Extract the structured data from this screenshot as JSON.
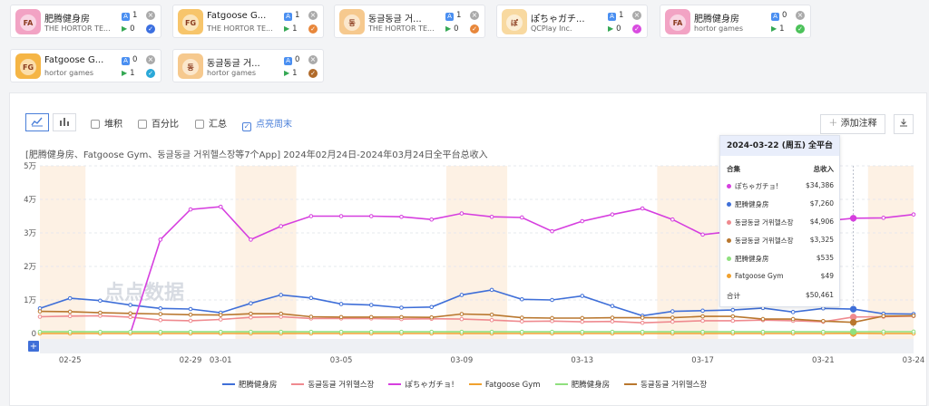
{
  "apps": [
    {
      "name": "肥腾健身房",
      "publisher": "THE HORTOR TE...",
      "ios": "1",
      "android": "0",
      "status_color": "#3b6fe0",
      "status": "check",
      "icon_bg": "#f2a3c4",
      "icon_label": "FA"
    },
    {
      "name": "Fatgoose G...",
      "publisher": "THE HORTOR TE...",
      "ios": "1",
      "android": "1",
      "status_color": "#e8873b",
      "status": "check",
      "icon_bg": "#f7c56b",
      "icon_label": "FG"
    },
    {
      "name": "동글동글 거...",
      "publisher": "THE HORTOR TE...",
      "ios": "1",
      "android": "0",
      "status_color": "#e8873b",
      "status": "check",
      "icon_bg": "#f6c98e",
      "icon_label": "동"
    },
    {
      "name": "ぽちゃガチ...",
      "publisher": "QCPlay Inc.",
      "ios": "1",
      "android": "0",
      "status_color": "#d94be0",
      "status": "check",
      "icon_bg": "#f8d9a0",
      "icon_label": "ぽ"
    },
    {
      "name": "肥腾健身房",
      "publisher": "hortor games",
      "ios": "0",
      "android": "1",
      "status_color": "#4cc25a",
      "status": "check",
      "icon_bg": "#f2a3c4",
      "icon_label": "FA"
    },
    {
      "name": "Fatgoose G...",
      "publisher": "hortor games",
      "ios": "0",
      "android": "1",
      "status_color": "#2aa8d8",
      "status": "check",
      "icon_bg": "#f5b545",
      "icon_label": "FG"
    },
    {
      "name": "동글동글 거...",
      "publisher": "hortor games",
      "ios": "0",
      "android": "1",
      "status_color": "#b06a2a",
      "status": "check",
      "icon_bg": "#f6c98e",
      "icon_label": "동"
    }
  ],
  "toolbar": {
    "stack_label": "堆积",
    "percent_label": "百分比",
    "sum_label": "汇总",
    "weekend_label": "点亮周末",
    "add_note_label": "添加注释"
  },
  "subtitle": "[肥腾健身房、Fatgoose Gym、동글동글 거위헬스장等7个App]  2024年02月24日-2024年03月24日全平台总收入",
  "watermark": "点点数据",
  "tooltip": {
    "header": "2024-03-22 (周五) 全平台",
    "col_app": "合集",
    "col_value": "总收入",
    "rows": [
      {
        "name": "ぽちゃガチョ!",
        "value": "$34,386",
        "color": "#d63fdf"
      },
      {
        "name": "肥腾健身房",
        "value": "$7,260",
        "color": "#3f6fd8"
      },
      {
        "name": "동글동글 거위헬스장",
        "value": "$4,906",
        "color": "#ef8a8f"
      },
      {
        "name": "동글동글 거위헬스장",
        "value": "$3,325",
        "color": "#b9772e"
      },
      {
        "name": "肥腾健身房",
        "value": "$535",
        "color": "#8fe07e"
      },
      {
        "name": "Fatgoose Gym",
        "value": "$49",
        "color": "#f0a12e"
      }
    ],
    "total_label": "合计",
    "total_value": "$50,461"
  },
  "chart_data": {
    "type": "line",
    "x": [
      "02-24",
      "02-25",
      "02-26",
      "02-27",
      "02-28",
      "02-29",
      "03-01",
      "03-02",
      "03-03",
      "03-04",
      "03-05",
      "03-06",
      "03-07",
      "03-08",
      "03-09",
      "03-10",
      "03-11",
      "03-12",
      "03-13",
      "03-14",
      "03-15",
      "03-16",
      "03-17",
      "03-18",
      "03-19",
      "03-20",
      "03-21",
      "03-22",
      "03-23",
      "03-24"
    ],
    "x_tick_labels": [
      "02-25",
      "02-29",
      "03-01",
      "03-05",
      "03-09",
      "03-13",
      "03-17",
      "03-21",
      "03-24"
    ],
    "y_ticks": [
      "0",
      "1万",
      "2万",
      "3万",
      "4万",
      "5万"
    ],
    "ylim": [
      0,
      50000
    ],
    "weekend_bands": [
      [
        "02-24",
        "02-25"
      ],
      [
        "03-02",
        "03-03"
      ],
      [
        "03-09",
        "03-10"
      ],
      [
        "03-16",
        "03-17"
      ],
      [
        "03-23",
        "03-24"
      ]
    ],
    "highlight_x": "03-22",
    "series": [
      {
        "name": "肥腾健身房",
        "color": "#3f6fd8",
        "values": [
          7500,
          10500,
          9800,
          8500,
          7500,
          7300,
          6200,
          9000,
          11500,
          10600,
          8800,
          8500,
          7700,
          7900,
          11500,
          13000,
          10200,
          10000,
          11200,
          8200,
          5300,
          6600,
          6800,
          7000,
          7600,
          6400,
          7500,
          7260,
          5900,
          5800
        ]
      },
      {
        "name": "동글동글 거위헬스장",
        "color": "#ef8a8f",
        "values": [
          5000,
          5200,
          5300,
          4900,
          4000,
          3800,
          4200,
          4800,
          5000,
          4500,
          4500,
          4500,
          4300,
          4400,
          4300,
          4000,
          3600,
          3700,
          3500,
          3600,
          3200,
          3500,
          3800,
          3800,
          4000,
          3800,
          3500,
          4906,
          5000,
          5200
        ]
      },
      {
        "name": "ぽちゃガチョ!",
        "color": "#d63fdf",
        "values": [
          null,
          null,
          null,
          null,
          28000,
          37000,
          37800,
          28000,
          32000,
          35000,
          35000,
          35000,
          34800,
          34000,
          35800,
          34800,
          34600,
          30500,
          33500,
          35500,
          37300,
          34000,
          29500,
          30500,
          25500,
          27000,
          33500,
          34386,
          34500,
          35500
        ]
      },
      {
        "name": "Fatgoose Gym",
        "color": "#f0a12e",
        "values": [
          0,
          0,
          0,
          0,
          0,
          0,
          0,
          0,
          0,
          0,
          0,
          0,
          0,
          0,
          0,
          0,
          0,
          0,
          0,
          0,
          0,
          0,
          0,
          0,
          0,
          0,
          0,
          49,
          0,
          0
        ]
      },
      {
        "name": "肥腾健身房",
        "color": "#8fe07e",
        "values": [
          500,
          500,
          500,
          500,
          500,
          500,
          500,
          500,
          500,
          500,
          500,
          500,
          500,
          500,
          500,
          500,
          500,
          500,
          500,
          500,
          500,
          500,
          500,
          500,
          500,
          500,
          500,
          535,
          550,
          550
        ]
      },
      {
        "name": "동글동글 거위헬스장",
        "color": "#b9772e",
        "values": [
          6600,
          6500,
          6200,
          6000,
          5800,
          5600,
          5500,
          5900,
          5900,
          5000,
          4900,
          4900,
          4900,
          4800,
          5800,
          5600,
          4700,
          4600,
          4600,
          4700,
          4700,
          4700,
          5100,
          5100,
          4300,
          4300,
          3700,
          3325,
          5200,
          5300
        ]
      }
    ]
  }
}
